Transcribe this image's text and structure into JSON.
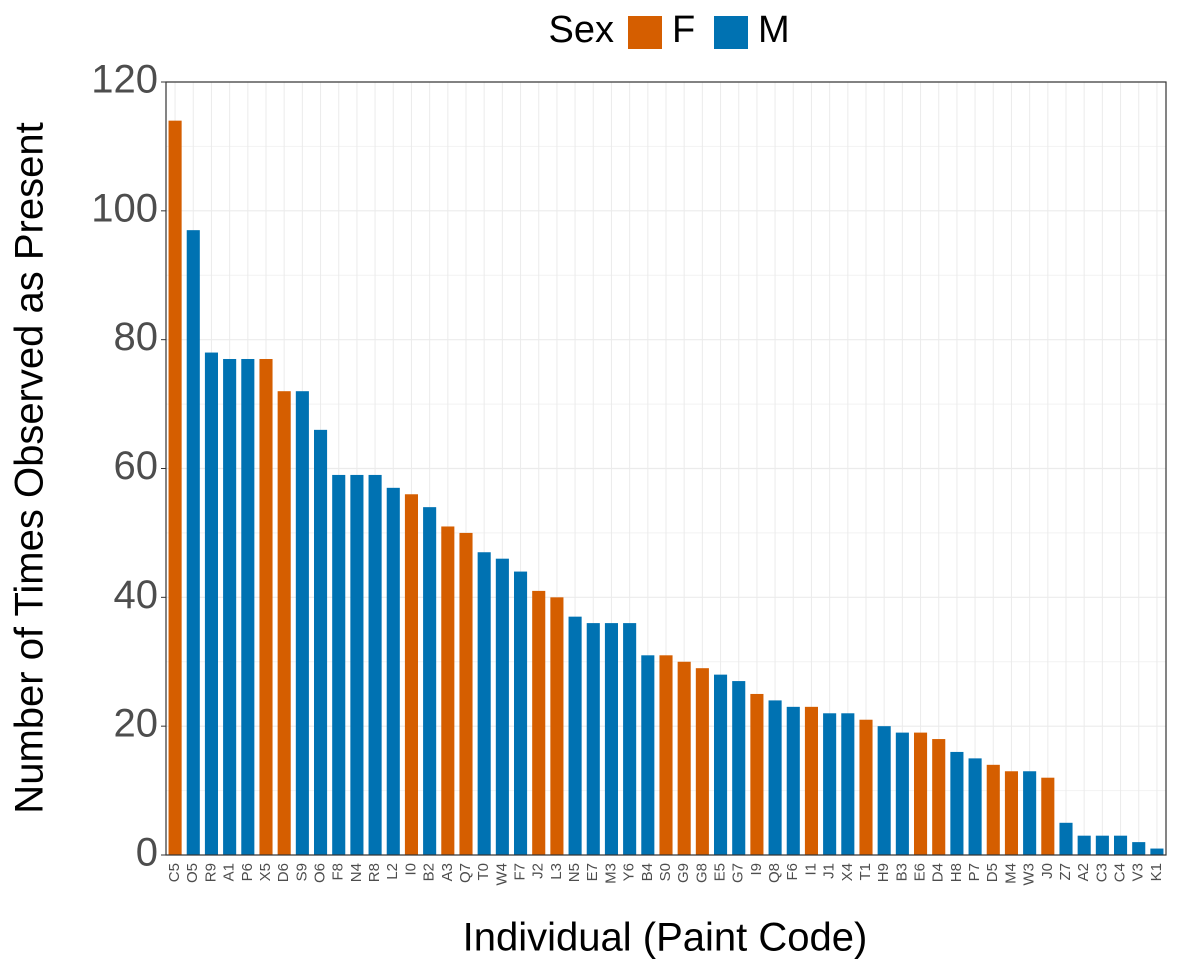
{
  "chart_data": {
    "type": "bar",
    "x_label": "Individual (Paint Code)",
    "y_label": "Number of Times Observed as Present",
    "legend_title": "Sex",
    "categories": [
      "C5",
      "O5",
      "R9",
      "A1",
      "P6",
      "X5",
      "D6",
      "S9",
      "O6",
      "F8",
      "N4",
      "R8",
      "L2",
      "I0",
      "B2",
      "A3",
      "Q7",
      "T0",
      "W4",
      "F7",
      "J2",
      "L3",
      "N5",
      "E7",
      "M3",
      "Y6",
      "B4",
      "S0",
      "G9",
      "G8",
      "E5",
      "G7",
      "I9",
      "Q8",
      "F6",
      "I1",
      "J1",
      "X4",
      "T1",
      "H9",
      "B3",
      "E6",
      "D4",
      "H8",
      "P7",
      "D5",
      "M4",
      "W3",
      "J0",
      "Z7",
      "A2",
      "C3",
      "C4",
      "V3",
      "K1"
    ],
    "series": [
      {
        "name": "F",
        "color": "#d55e00",
        "values": [
          114,
          null,
          null,
          null,
          null,
          77,
          72,
          null,
          null,
          null,
          null,
          null,
          null,
          56,
          null,
          51,
          50,
          null,
          null,
          null,
          41,
          40,
          null,
          null,
          null,
          null,
          null,
          31,
          30,
          29,
          null,
          null,
          25,
          null,
          null,
          23,
          null,
          null,
          21,
          null,
          null,
          19,
          18,
          null,
          null,
          14,
          13,
          null,
          12,
          null,
          null,
          null,
          null,
          null,
          null
        ]
      },
      {
        "name": "M",
        "color": "#0072b2",
        "values": [
          null,
          97,
          78,
          77,
          77,
          null,
          null,
          72,
          66,
          59,
          59,
          59,
          57,
          null,
          54,
          null,
          null,
          47,
          46,
          44,
          null,
          null,
          37,
          36,
          36,
          36,
          31,
          null,
          null,
          null,
          28,
          27,
          null,
          24,
          23,
          null,
          22,
          22,
          null,
          20,
          19,
          null,
          null,
          16,
          15,
          null,
          null,
          13,
          null,
          5,
          3,
          3,
          3,
          2,
          1
        ]
      }
    ],
    "ylim": [
      0,
      120
    ],
    "yticks": [
      0,
      20,
      40,
      60,
      80,
      100,
      120
    ],
    "grid": true,
    "legend_position": "top"
  }
}
